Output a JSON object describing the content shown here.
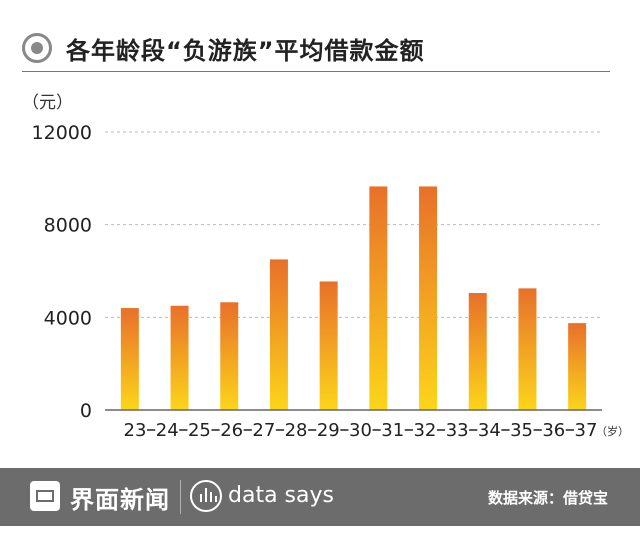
{
  "header": {
    "title": "各年龄段“负游族”平均借款金额"
  },
  "footer": {
    "brand": "界面新闻",
    "datasays": "data says",
    "source": "数据来源：借贷宝"
  },
  "colors": {
    "bar_top": "#e8702a",
    "bar_bottom": "#fcd51a",
    "grid": "#bbbbbb",
    "axis": "#666666"
  },
  "chart_data": {
    "type": "bar",
    "categories": [
      "23-24",
      "24-25",
      "25-26",
      "26-27",
      "27-28",
      "28-29",
      "29-30",
      "30-31",
      "31-32",
      "32-33"
    ],
    "x_tick_labels": [
      "23",
      "24",
      "25",
      "26",
      "27",
      "28",
      "29",
      "30",
      "31",
      "32",
      "33",
      "34",
      "35",
      "36",
      "37"
    ],
    "values": [
      4400,
      4500,
      4650,
      6500,
      5550,
      9650,
      9650,
      5050,
      5250,
      3750
    ],
    "ylabel": "（元）",
    "xunit": "（岁）",
    "ylim": [
      0,
      12000
    ],
    "yticks": [
      0,
      4000,
      8000,
      12000
    ],
    "grid": true,
    "legend": "none"
  }
}
